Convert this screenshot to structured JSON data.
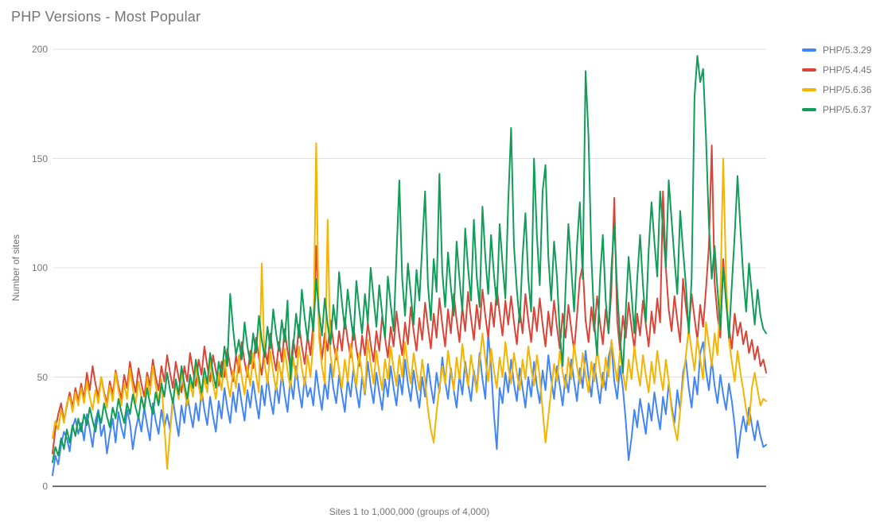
{
  "page": {
    "background": "#ffffff"
  },
  "chart_data": {
    "type": "line",
    "title": "PHP Versions - Most Popular",
    "xlabel": "Sites 1 to 1,000,000 (groups of 4,000)",
    "ylabel": "Number of sites",
    "ylim": [
      0,
      200
    ],
    "yticks": [
      0,
      50,
      100,
      150,
      200
    ],
    "x_count": 250,
    "grid": "horizontal",
    "legend_position": "right",
    "series": [
      {
        "name": "PHP/5.3.29",
        "color": "#4285F4",
        "values": [
          5,
          14,
          10,
          19,
          25,
          22,
          16,
          27,
          31,
          24,
          29,
          21,
          33,
          26,
          18,
          30,
          35,
          23,
          28,
          15,
          24,
          31,
          20,
          34,
          27,
          22,
          35,
          29,
          17,
          26,
          32,
          25,
          36,
          28,
          21,
          38,
          30,
          24,
          35,
          27,
          33,
          26,
          40,
          31,
          23,
          37,
          29,
          42,
          34,
          27,
          38,
          30,
          44,
          35,
          28,
          41,
          32,
          25,
          39,
          31,
          45,
          36,
          29,
          43,
          34,
          47,
          38,
          30,
          44,
          36,
          48,
          39,
          31,
          46,
          37,
          50,
          40,
          33,
          47,
          38,
          52,
          42,
          34,
          49,
          40,
          55,
          44,
          36,
          50,
          41,
          45,
          37,
          53,
          43,
          35,
          48,
          40,
          56,
          45,
          38,
          51,
          42,
          34,
          49,
          41,
          54,
          44,
          36,
          50,
          42,
          57,
          46,
          38,
          52,
          43,
          35,
          49,
          41,
          55,
          45,
          37,
          51,
          42,
          58,
          47,
          39,
          53,
          44,
          36,
          50,
          41,
          56,
          46,
          38,
          52,
          43,
          59,
          48,
          40,
          54,
          44,
          36,
          51,
          42,
          57,
          47,
          39,
          53,
          44,
          61,
          49,
          40,
          70,
          55,
          33,
          17,
          45,
          38,
          52,
          43,
          58,
          47,
          39,
          54,
          45,
          36,
          50,
          41,
          57,
          46,
          38,
          53,
          44,
          60,
          49,
          40,
          55,
          46,
          37,
          51,
          43,
          58,
          48,
          39,
          54,
          45,
          62,
          50,
          41,
          56,
          47,
          38,
          52,
          44,
          59,
          65,
          48,
          40,
          55,
          45,
          30,
          12,
          22,
          35,
          27,
          40,
          32,
          24,
          38,
          30,
          43,
          34,
          26,
          41,
          33,
          47,
          37,
          29,
          44,
          35,
          52,
          58,
          45,
          36,
          50,
          42,
          61,
          66,
          53,
          44,
          58,
          46,
          38,
          51,
          42,
          35,
          47,
          39,
          28,
          13,
          24,
          32,
          25,
          36,
          28,
          21,
          30,
          23,
          18,
          19
        ]
      },
      {
        "name": "PHP/5.4.45",
        "color": "#DB4437",
        "values": [
          15,
          26,
          33,
          38,
          30,
          37,
          43,
          36,
          45,
          39,
          47,
          40,
          52,
          44,
          55,
          47,
          41,
          50,
          43,
          38,
          48,
          42,
          53,
          46,
          40,
          51,
          45,
          57,
          49,
          43,
          54,
          47,
          41,
          52,
          46,
          58,
          50,
          44,
          55,
          48,
          60,
          52,
          45,
          57,
          50,
          43,
          55,
          48,
          61,
          53,
          46,
          58,
          51,
          64,
          55,
          48,
          60,
          53,
          46,
          57,
          50,
          63,
          55,
          48,
          60,
          52,
          66,
          57,
          50,
          62,
          54,
          68,
          59,
          51,
          64,
          56,
          70,
          60,
          53,
          66,
          57,
          72,
          62,
          54,
          67,
          59,
          74,
          64,
          56,
          69,
          60,
          75,
          110,
          72,
          58,
          70,
          62,
          76,
          66,
          58,
          71,
          62,
          77,
          67,
          59,
          73,
          63,
          55,
          69,
          60,
          75,
          65,
          57,
          71,
          62,
          78,
          68,
          59,
          73,
          64,
          80,
          69,
          60,
          75,
          65,
          82,
          71,
          62,
          77,
          67,
          84,
          73,
          63,
          79,
          68,
          86,
          74,
          64,
          81,
          70,
          88,
          76,
          66,
          82,
          71,
          89,
          77,
          67,
          83,
          72,
          90,
          78,
          68,
          84,
          73,
          91,
          79,
          69,
          85,
          74,
          87,
          75,
          65,
          81,
          70,
          88,
          76,
          66,
          82,
          71,
          86,
          74,
          64,
          80,
          69,
          85,
          73,
          63,
          79,
          68,
          83,
          72,
          62,
          78,
          95,
          101,
          76,
          66,
          82,
          71,
          87,
          75,
          65,
          81,
          70,
          90,
          132,
          76,
          62,
          78,
          68,
          84,
          73,
          63,
          79,
          69,
          85,
          74,
          64,
          80,
          70,
          86,
          75,
          135,
          100,
          81,
          71,
          87,
          76,
          66,
          95,
          82,
          72,
          88,
          77,
          67,
          83,
          73,
          90,
          110,
          156,
          93,
          78,
          68,
          104,
          84,
          73,
          63,
          79,
          69,
          75,
          65,
          71,
          61,
          67,
          58,
          64,
          55,
          58,
          52
        ]
      },
      {
        "name": "PHP/5.6.36",
        "color": "#F4B400",
        "values": [
          22,
          30,
          26,
          35,
          29,
          38,
          41,
          34,
          43,
          37,
          45,
          38,
          48,
          41,
          35,
          44,
          38,
          50,
          42,
          36,
          46,
          39,
          52,
          44,
          37,
          47,
          40,
          54,
          45,
          38,
          48,
          41,
          35,
          50,
          42,
          55,
          46,
          39,
          49,
          28,
          8,
          25,
          38,
          47,
          40,
          52,
          44,
          37,
          48,
          41,
          55,
          46,
          39,
          50,
          43,
          57,
          47,
          40,
          52,
          44,
          58,
          48,
          41,
          53,
          45,
          60,
          50,
          42,
          55,
          46,
          61,
          51,
          43,
          102,
          56,
          47,
          62,
          52,
          44,
          57,
          48,
          63,
          53,
          45,
          59,
          49,
          64,
          54,
          46,
          60,
          50,
          66,
          157,
          68,
          55,
          47,
          122,
          60,
          50,
          63,
          53,
          45,
          58,
          48,
          65,
          54,
          46,
          61,
          51,
          43,
          67,
          56,
          47,
          62,
          52,
          44,
          58,
          49,
          64,
          54,
          46,
          60,
          50,
          66,
          55,
          47,
          61,
          52,
          44,
          58,
          48,
          35,
          26,
          20,
          34,
          45,
          55,
          47,
          62,
          52,
          44,
          59,
          49,
          65,
          54,
          46,
          60,
          51,
          43,
          57,
          70,
          58,
          48,
          63,
          53,
          45,
          59,
          50,
          66,
          55,
          47,
          61,
          52,
          44,
          58,
          49,
          64,
          54,
          46,
          60,
          50,
          35,
          20,
          32,
          44,
          56,
          48,
          62,
          52,
          45,
          59,
          49,
          65,
          55,
          47,
          61,
          51,
          43,
          57,
          48,
          63,
          53,
          45,
          59,
          50,
          67,
          57,
          48,
          62,
          52,
          44,
          58,
          49,
          64,
          54,
          46,
          60,
          51,
          43,
          57,
          47,
          62,
          52,
          44,
          58,
          48,
          35,
          27,
          21,
          35,
          48,
          60,
          72,
          62,
          53,
          68,
          58,
          49,
          75,
          65,
          55,
          70,
          60,
          88,
          150,
          95,
          67,
          57,
          48,
          62,
          52,
          44,
          35,
          28,
          45,
          52,
          44,
          37,
          40,
          39
        ]
      },
      {
        "name": "PHP/5.6.37",
        "color": "#0F9D58",
        "values": [
          11,
          18,
          14,
          22,
          17,
          26,
          20,
          28,
          23,
          31,
          25,
          33,
          28,
          36,
          30,
          25,
          34,
          29,
          38,
          32,
          27,
          36,
          31,
          40,
          34,
          29,
          38,
          33,
          42,
          36,
          31,
          41,
          35,
          45,
          38,
          33,
          43,
          37,
          47,
          41,
          52,
          44,
          38,
          49,
          42,
          55,
          47,
          40,
          51,
          45,
          58,
          50,
          43,
          54,
          47,
          61,
          52,
          45,
          57,
          50,
          64,
          55,
          88,
          72,
          60,
          67,
          58,
          75,
          64,
          56,
          70,
          61,
          78,
          67,
          59,
          73,
          63,
          81,
          70,
          62,
          76,
          66,
          85,
          49,
          64,
          79,
          68,
          90,
          77,
          67,
          82,
          71,
          95,
          80,
          69,
          86,
          74,
          65,
          83,
          72,
          98,
          84,
          72,
          90,
          78,
          67,
          94,
          81,
          70,
          88,
          75,
          100,
          86,
          73,
          92,
          79,
          68,
          96,
          83,
          71,
          105,
          140,
          95,
          78,
          102,
          88,
          74,
          99,
          85,
          110,
          135,
          92,
          76,
          104,
          89,
          143,
          98,
          82,
          107,
          91,
          78,
          112,
          95,
          80,
          118,
          100,
          85,
          122,
          96,
          82,
          128,
          105,
          88,
          115,
          97,
          83,
          120,
          102,
          86,
          130,
          164,
          110,
          90,
          75,
          105,
          125,
          95,
          80,
          150,
          115,
          92,
          135,
          147,
          105,
          85,
          112,
          96,
          70,
          55,
          90,
          120,
          100,
          80,
          110,
          130,
          95,
          190,
          160,
          105,
          75,
          60,
          95,
          115,
          85,
          70,
          100,
          120,
          90,
          68,
          52,
          80,
          105,
          88,
          70,
          95,
          115,
          92,
          75,
          108,
          130,
          112,
          96,
          135,
          118,
          100,
          140,
          122,
          104,
          88,
          126,
          108,
          92,
          70,
          95,
          178,
          197,
          185,
          191,
          160,
          120,
          95,
          110,
          90,
          72,
          100,
          85,
          68,
          92,
          115,
          142,
          118,
          96,
          80,
          102,
          88,
          74,
          90,
          78,
          72,
          70
        ]
      }
    ]
  }
}
